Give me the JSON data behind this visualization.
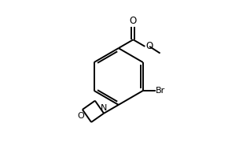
{
  "bg_color": "#ffffff",
  "line_color": "#000000",
  "line_width": 1.4,
  "text_color": "#000000",
  "label_fontsize": 7.5,
  "figsize": [
    2.9,
    1.94
  ],
  "dpi": 100,
  "xlim": [
    0,
    10
  ],
  "ylim": [
    0,
    6.7
  ]
}
